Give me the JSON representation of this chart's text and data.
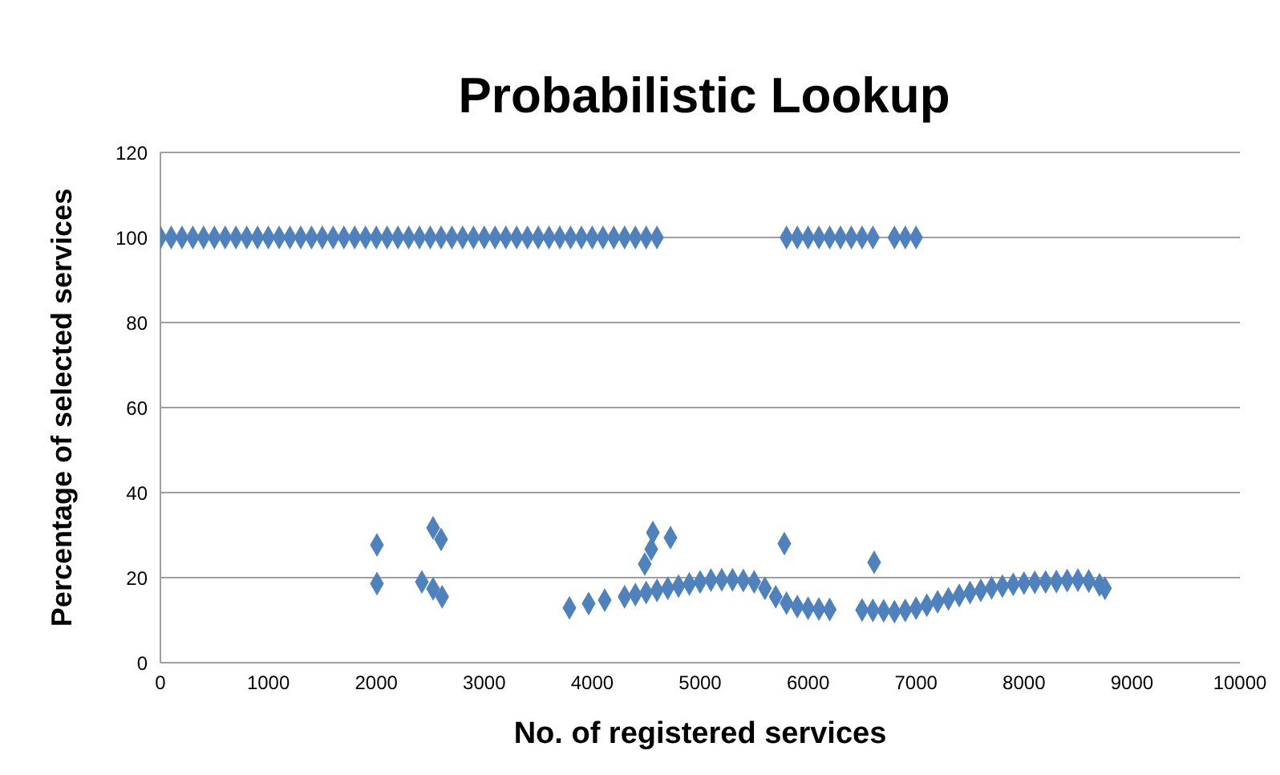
{
  "chart_data": {
    "type": "scatter",
    "title": "Probabilistic Lookup",
    "xlabel": "No. of registered services",
    "ylabel": "Percentage of selected services",
    "xlim": [
      0,
      10000
    ],
    "xticks": [
      0,
      1000,
      2000,
      3000,
      4000,
      5000,
      6000,
      7000,
      8000,
      9000,
      10000
    ],
    "ylim": [
      0,
      120
    ],
    "yticks": [
      0,
      20,
      40,
      60,
      80,
      100,
      120
    ],
    "grid": "y",
    "marker": "diamond",
    "series": [
      {
        "color": "#4f81bd",
        "x": [
          0,
          100,
          200,
          300,
          400,
          500,
          600,
          700,
          800,
          900,
          1000,
          1100,
          1200,
          1300,
          1400,
          1500,
          1600,
          1700,
          1800,
          1900,
          2000,
          2100,
          2200,
          2300,
          2400,
          2500,
          2600,
          2700,
          2800,
          2900,
          3000,
          3100,
          3200,
          3300,
          3400,
          3500,
          3600,
          3700,
          3800,
          3900,
          4000,
          4100,
          4200,
          4300,
          4400,
          4500,
          4600,
          5800,
          5900,
          6000,
          6100,
          6200,
          6300,
          6400,
          6500,
          6600,
          6800,
          6900,
          7000,
          2006,
          2006,
          2422,
          2526,
          2600,
          2526,
          2610,
          3789,
          3967,
          4116,
          4487,
          4547,
          4562,
          4725,
          5780,
          6612,
          4300,
          4400,
          4500,
          4600,
          4700,
          4800,
          4900,
          5000,
          5100,
          5200,
          5300,
          5400,
          5500,
          5600,
          5700,
          5800,
          5900,
          6000,
          6100,
          6200,
          6500,
          6600,
          6700,
          6800,
          6900,
          7000,
          7100,
          7200,
          7300,
          7400,
          7500,
          7600,
          7700,
          7800,
          7900,
          8000,
          8100,
          8200,
          8300,
          8400,
          8500,
          8600,
          8700,
          8750
        ],
        "values": [
          100,
          100,
          100,
          100,
          100,
          100,
          100,
          100,
          100,
          100,
          100,
          100,
          100,
          100,
          100,
          100,
          100,
          100,
          100,
          100,
          100,
          100,
          100,
          100,
          100,
          100,
          100,
          100,
          100,
          100,
          100,
          100,
          100,
          100,
          100,
          100,
          100,
          100,
          100,
          100,
          100,
          100,
          100,
          100,
          100,
          100,
          100,
          100,
          100,
          100,
          100,
          100,
          100,
          100,
          100,
          100,
          100,
          100,
          100,
          27.7,
          18.6,
          19,
          31.7,
          29,
          17.4,
          15.5,
          12.9,
          13.9,
          14.7,
          23.2,
          26.7,
          30.6,
          29.4,
          28,
          23.6,
          15.5,
          16,
          16.5,
          17,
          17.5,
          18,
          18.5,
          19,
          19.4,
          19.5,
          19.5,
          19.3,
          19,
          17.5,
          15.5,
          14,
          13.2,
          12.8,
          12.6,
          12.5,
          12.4,
          12.3,
          12.2,
          12,
          12.3,
          12.8,
          13.5,
          14.3,
          15,
          15.8,
          16.5,
          17,
          17.6,
          18,
          18.4,
          18.7,
          18.9,
          19,
          19.1,
          19.3,
          19.4,
          19.2,
          18.3,
          17.5
        ]
      }
    ]
  }
}
